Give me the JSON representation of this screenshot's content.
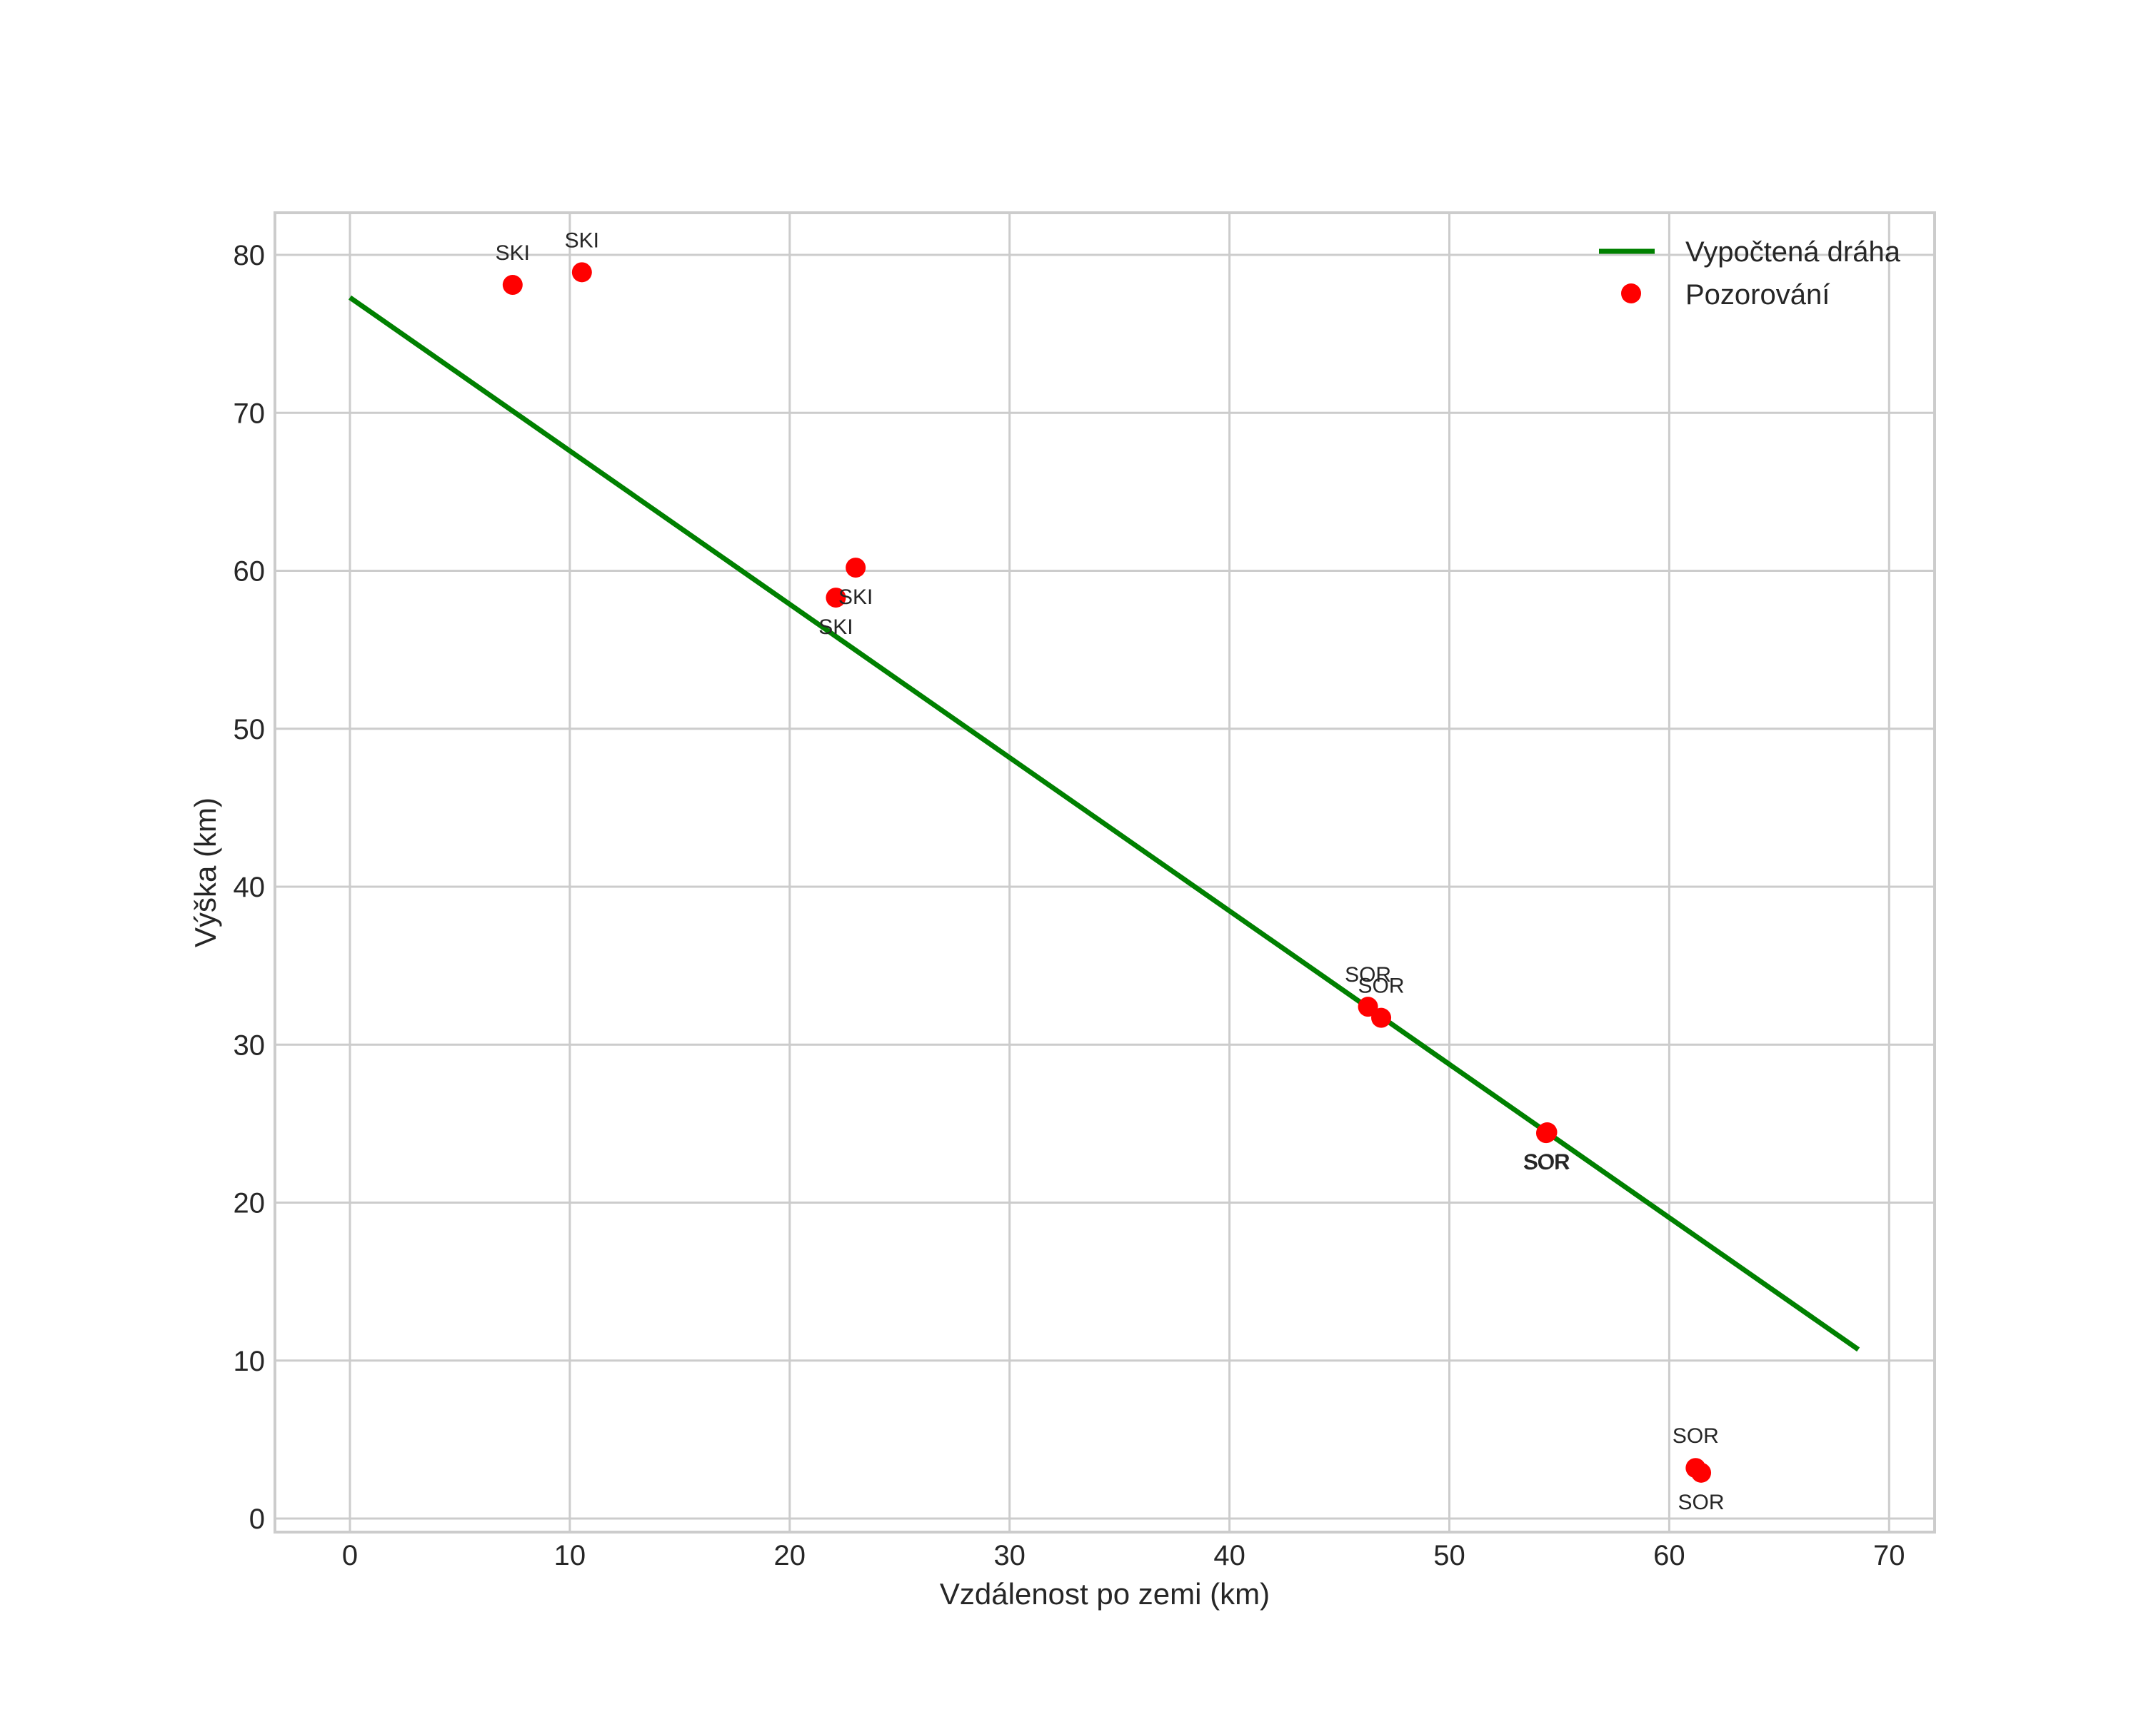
{
  "chart_data": {
    "type": "line+scatter",
    "title": "",
    "xlabel": "Vzdálenost po zemi (km)",
    "ylabel": "Výška (km)",
    "xlim": [
      -3.4,
      72.1
    ],
    "ylim": [
      -0.9,
      82.7
    ],
    "xticks": [
      0,
      10,
      20,
      30,
      40,
      50,
      60,
      70
    ],
    "yticks": [
      0,
      10,
      20,
      30,
      40,
      50,
      60,
      70,
      80
    ],
    "grid": true,
    "legend_position": "upper right",
    "series": [
      {
        "name": "Vypočtená dráha",
        "type": "line",
        "color": "#008000",
        "x": [
          0,
          68.6
        ],
        "y": [
          77.3,
          10.7
        ]
      },
      {
        "name": "Pozorování",
        "type": "scatter",
        "color": "#ff0000",
        "points": [
          {
            "x": 7.4,
            "y": 78.1,
            "label": "SKI",
            "label_pos": "above"
          },
          {
            "x": 10.55,
            "y": 78.9,
            "label": "SKI",
            "label_pos": "above"
          },
          {
            "x": 23.0,
            "y": 60.2,
            "label": "SKI",
            "label_pos": "below"
          },
          {
            "x": 22.1,
            "y": 58.3,
            "label": "SKI",
            "label_pos": "below"
          },
          {
            "x": 46.3,
            "y": 32.4,
            "label": "SOR",
            "label_pos": "above"
          },
          {
            "x": 46.9,
            "y": 31.7,
            "label": "SOR",
            "label_pos": "above"
          },
          {
            "x": 54.4,
            "y": 24.4,
            "label": "SOR",
            "label_pos": "below"
          },
          {
            "x": 54.45,
            "y": 24.45,
            "label": "SOR",
            "label_pos": "below"
          },
          {
            "x": 61.2,
            "y": 3.2,
            "label": "SOR",
            "label_pos": "above"
          },
          {
            "x": 61.45,
            "y": 2.9,
            "label": "SOR",
            "label_pos": "below"
          }
        ]
      }
    ]
  },
  "colors": {
    "grid": "#cccccc",
    "spine": "#cccccc",
    "text": "#262626",
    "line": "#008000",
    "points": "#ff0000"
  }
}
